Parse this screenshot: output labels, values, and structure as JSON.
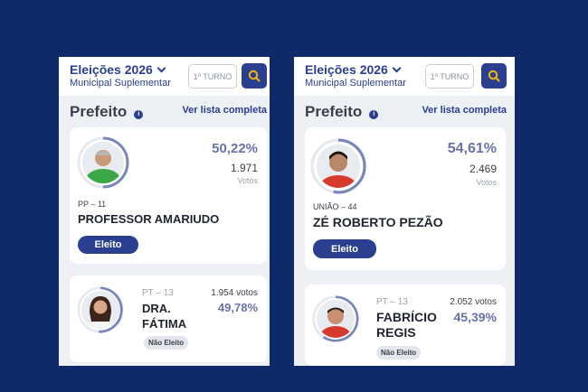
{
  "colors": {
    "background": "#0e2a6b",
    "brand": "#2a3f8f",
    "percent": "#6a73a8",
    "ring": "#7a86b8"
  },
  "panels": [
    {
      "header": {
        "title": "Eleições 2026",
        "subtitle": "Municipal Suplementar",
        "turno": "1º TURNO",
        "search_icon": "search-icon",
        "chevron_icon": "chevron-down-icon"
      },
      "section": {
        "title": "Prefeito",
        "info_icon": "info-icon",
        "link": "Ver lista completa"
      },
      "winner": {
        "percent": "50,22%",
        "votes": "1.971",
        "votes_label": "Votos",
        "party": "PP – 11",
        "name": "PROFESSOR AMARIUDO",
        "status": "Eleito",
        "shirt_color": "#3aa845"
      },
      "loser": {
        "party": "PT – 13",
        "name": "DRA. FÁTIMA",
        "votes": "1.954 votos",
        "percent": "49,78%",
        "status": "Não Eleito"
      }
    },
    {
      "header": {
        "title": "Eleições 2026",
        "subtitle": "Municipal Suplementar",
        "turno": "1º TURNO",
        "search_icon": "search-icon",
        "chevron_icon": "chevron-down-icon"
      },
      "section": {
        "title": "Prefeito",
        "info_icon": "info-icon",
        "link": "Ver lista completa"
      },
      "winner": {
        "percent": "54,61%",
        "votes": "2.469",
        "votes_label": "Votos",
        "party": "UNIÃO – 44",
        "name": "ZÉ ROBERTO PEZÃO",
        "status": "Eleito",
        "shirt_color": "#d63a2f"
      },
      "loser": {
        "party": "PT – 13",
        "name": "FABRÍCIO REGIS",
        "votes": "2.052 votos",
        "percent": "45,39%",
        "status": "Não Eleito"
      }
    }
  ]
}
